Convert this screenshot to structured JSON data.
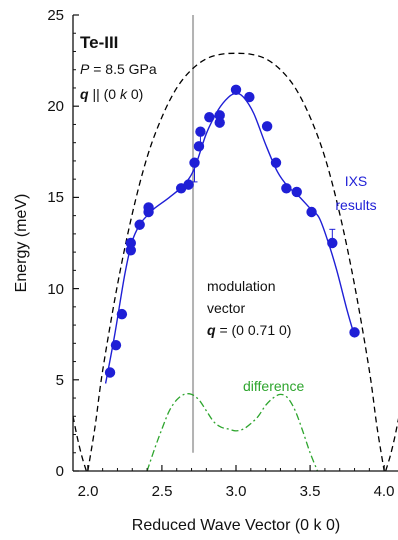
{
  "chart_data": {
    "type": "scatter",
    "title": "Te-III",
    "xlabel": "Reduced Wave Vector (0 k 0)",
    "ylabel": "Energy (meV)",
    "xlim": [
      1.9,
      4.1
    ],
    "ylim": [
      0,
      25
    ],
    "x_ticks": [
      "2.0",
      "2.5",
      "3.0",
      "3.5",
      "4.0"
    ],
    "y_ticks": [
      "0",
      "5",
      "10",
      "15",
      "20",
      "25"
    ],
    "grid": false,
    "annotations": {
      "pressure_sym": "P",
      "pressure_val": " = 8.5 GPa",
      "q_sym": "q",
      "q_par": " || (0 ",
      "q_k": "k",
      "q_end": " 0)",
      "ixs_1": "IXS",
      "ixs_2": "results",
      "mod_1": "modulation",
      "mod_2": "vector",
      "mod_q_sym": "q",
      "mod_q_val": " = (0 0.71 0)",
      "difference": "difference"
    },
    "colors": {
      "points": "#1f1fd6",
      "fit": "#1f1fd6",
      "dashed": "#000000",
      "difference": "#2ea52e",
      "modulation_line": "#b3b3b3"
    },
    "modulation_vector_x": 2.71,
    "series": [
      {
        "name": "IXS results",
        "style": "points",
        "points": [
          [
            2.15,
            5.4
          ],
          [
            2.19,
            6.9
          ],
          [
            2.23,
            8.6
          ],
          [
            2.29,
            12.1
          ],
          [
            2.29,
            12.5
          ],
          [
            2.35,
            13.5
          ],
          [
            2.41,
            14.2
          ],
          [
            2.41,
            14.45
          ],
          [
            2.63,
            15.5
          ],
          [
            2.68,
            15.7
          ],
          [
            2.72,
            16.9
          ],
          [
            2.75,
            17.8
          ],
          [
            2.76,
            18.6
          ],
          [
            2.82,
            19.4
          ],
          [
            2.89,
            19.5
          ],
          [
            2.89,
            19.1
          ],
          [
            3.0,
            20.9
          ],
          [
            3.09,
            20.5
          ],
          [
            3.21,
            18.9
          ],
          [
            3.27,
            16.9
          ],
          [
            3.34,
            15.5
          ],
          [
            3.41,
            15.3
          ],
          [
            3.51,
            14.2
          ],
          [
            3.65,
            12.5
          ],
          [
            3.8,
            7.6
          ]
        ]
      },
      {
        "name": "fit",
        "style": "solid",
        "points": [
          [
            2.12,
            4.8
          ],
          [
            2.18,
            7.4
          ],
          [
            2.25,
            10.8
          ],
          [
            2.3,
            12.6
          ],
          [
            2.35,
            13.5
          ],
          [
            2.4,
            14.0
          ],
          [
            2.45,
            14.4
          ],
          [
            2.55,
            15.0
          ],
          [
            2.65,
            15.7
          ],
          [
            2.72,
            16.6
          ],
          [
            2.8,
            18.5
          ],
          [
            2.88,
            19.8
          ],
          [
            2.95,
            20.5
          ],
          [
            3.0,
            20.7
          ],
          [
            3.05,
            20.5
          ],
          [
            3.12,
            19.6
          ],
          [
            3.2,
            17.9
          ],
          [
            3.28,
            16.4
          ],
          [
            3.35,
            15.6
          ],
          [
            3.42,
            15.1
          ],
          [
            3.5,
            14.4
          ],
          [
            3.56,
            13.9
          ],
          [
            3.62,
            12.6
          ],
          [
            3.68,
            11.0
          ],
          [
            3.75,
            8.8
          ],
          [
            3.8,
            7.4
          ]
        ]
      },
      {
        "name": "dashed",
        "style": "dashed",
        "points": [
          [
            2.0,
            0.0
          ],
          [
            2.05,
            2.5
          ],
          [
            2.1,
            5.5
          ],
          [
            2.2,
            10.2
          ],
          [
            2.3,
            14.1
          ],
          [
            2.4,
            17.2
          ],
          [
            2.5,
            19.4
          ],
          [
            2.6,
            21.0
          ],
          [
            2.7,
            22.0
          ],
          [
            2.8,
            22.6
          ],
          [
            2.9,
            22.85
          ],
          [
            3.0,
            22.9
          ],
          [
            3.1,
            22.85
          ],
          [
            3.2,
            22.6
          ],
          [
            3.3,
            22.0
          ],
          [
            3.4,
            21.0
          ],
          [
            3.5,
            19.4
          ],
          [
            3.6,
            17.2
          ],
          [
            3.7,
            14.1
          ],
          [
            3.8,
            10.2
          ],
          [
            3.9,
            5.5
          ],
          [
            3.95,
            2.5
          ],
          [
            4.0,
            0.0
          ]
        ]
      },
      {
        "name": "dashed-left-edge",
        "style": "dashed",
        "points": [
          [
            1.9,
            3.0
          ],
          [
            1.93,
            1.8
          ],
          [
            1.96,
            0.8
          ],
          [
            1.99,
            0.0
          ]
        ]
      },
      {
        "name": "dashed-right-edge",
        "style": "dashed",
        "points": [
          [
            4.01,
            0.0
          ],
          [
            4.04,
            0.8
          ],
          [
            4.07,
            1.8
          ],
          [
            4.1,
            3.0
          ]
        ]
      },
      {
        "name": "difference",
        "style": "dashdot",
        "points": [
          [
            2.4,
            0.0
          ],
          [
            2.45,
            1.2
          ],
          [
            2.5,
            2.3
          ],
          [
            2.55,
            3.3
          ],
          [
            2.6,
            3.9
          ],
          [
            2.65,
            4.2
          ],
          [
            2.7,
            4.2
          ],
          [
            2.75,
            3.9
          ],
          [
            2.8,
            3.3
          ],
          [
            2.85,
            2.7
          ],
          [
            2.9,
            2.4
          ],
          [
            2.95,
            2.3
          ],
          [
            3.0,
            2.2
          ],
          [
            3.05,
            2.3
          ],
          [
            3.1,
            2.6
          ],
          [
            3.15,
            3.0
          ],
          [
            3.2,
            3.6
          ],
          [
            3.25,
            4.0
          ],
          [
            3.3,
            4.2
          ],
          [
            3.35,
            4.0
          ],
          [
            3.4,
            3.3
          ],
          [
            3.45,
            2.2
          ],
          [
            3.5,
            1.0
          ],
          [
            3.55,
            0.0
          ]
        ]
      }
    ],
    "error_bars": [
      {
        "x": 2.72,
        "y": 16.3,
        "err": 0.45
      },
      {
        "x": 2.76,
        "y": 18.1,
        "err": 0.35
      },
      {
        "x": 3.65,
        "y": 12.9,
        "err": 0.35
      }
    ]
  }
}
